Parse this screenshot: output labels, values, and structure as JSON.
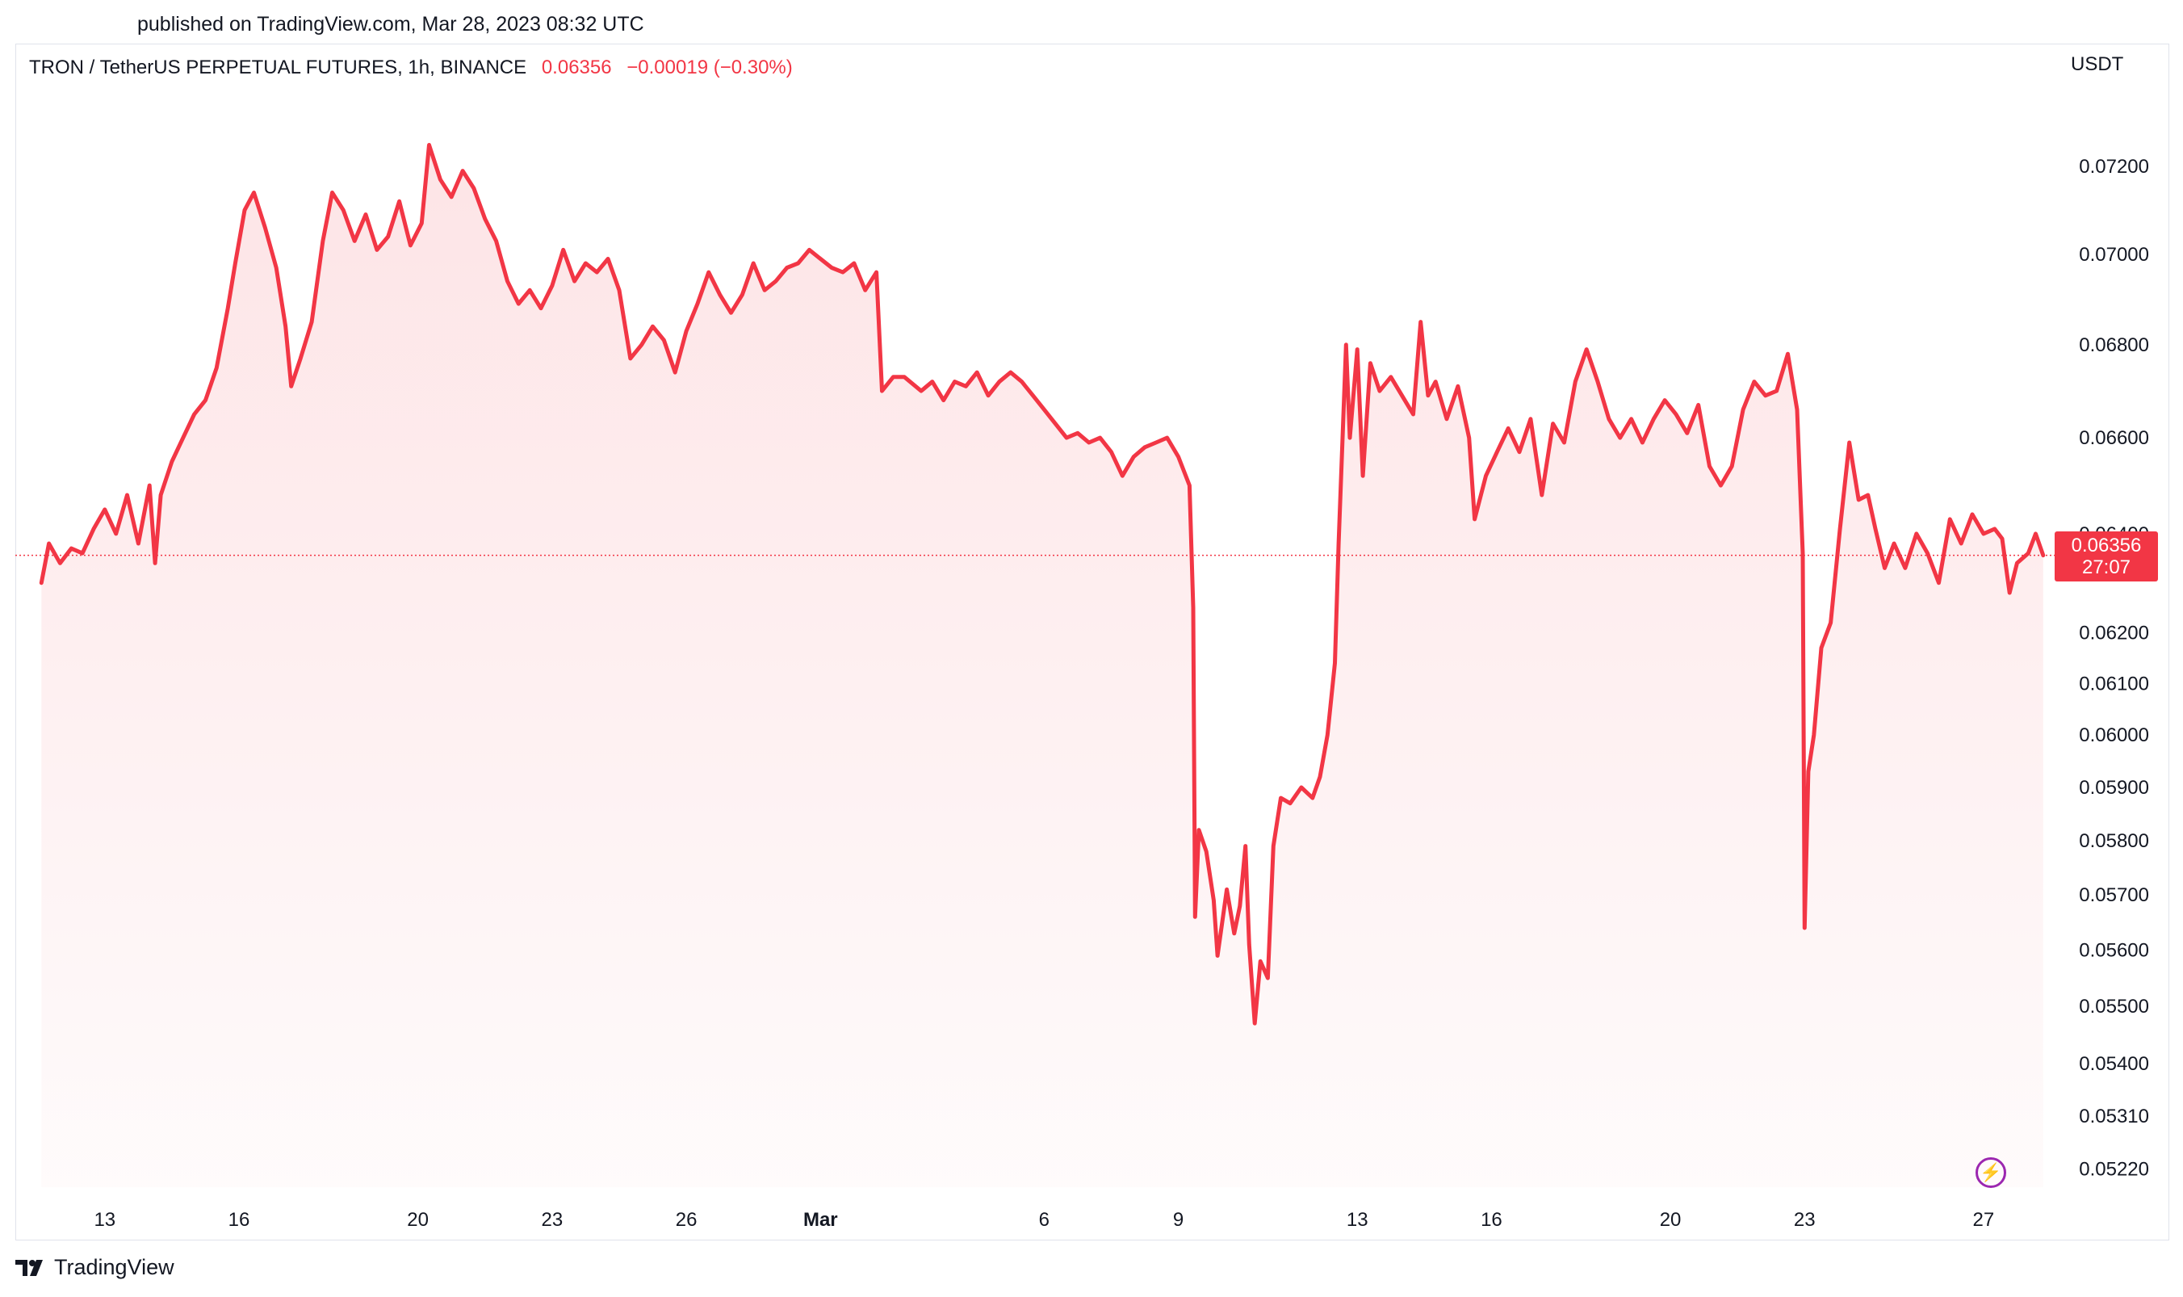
{
  "header": {
    "published": "published on TradingView.com, Mar 28, 2023 08:32 UTC"
  },
  "legend": {
    "symbol": "TRON / TetherUS PERPETUAL FUTURES, 1h, BINANCE",
    "last_price": "0.06356",
    "change": "−0.00019 (−0.30%)"
  },
  "price_scale": {
    "currency": "USDT",
    "tag_price": "0.06356",
    "tag_countdown": "27:07"
  },
  "brand": {
    "name": "TradingView"
  },
  "colors": {
    "line": "#f23645",
    "fill_top": "#fde4e6",
    "tag_bg": "#f23645",
    "bolt": "#9c27b0"
  },
  "chart_data": {
    "type": "area",
    "title": "TRON / TetherUS PERPETUAL FUTURES, 1h, BINANCE",
    "ylabel": "USDT",
    "xlabel": "",
    "y_scale": "log",
    "ylim": [
      0.0519,
      0.0742
    ],
    "xlim": [
      "2023-02-11T00:00",
      "2023-03-28T12:00"
    ],
    "y_ticks": [
      "0.07200",
      "0.07000",
      "0.06800",
      "0.06600",
      "0.06400",
      "0.06200",
      "0.06100",
      "0.06000",
      "0.05900",
      "0.05800",
      "0.05700",
      "0.05600",
      "0.05500",
      "0.05400",
      "0.05310",
      "0.05220"
    ],
    "x_ticks": [
      {
        "label": "13",
        "t": "2023-02-13T00:00"
      },
      {
        "label": "16",
        "t": "2023-02-16T00:00"
      },
      {
        "label": "20",
        "t": "2023-02-20T00:00"
      },
      {
        "label": "23",
        "t": "2023-02-23T00:00"
      },
      {
        "label": "26",
        "t": "2023-02-26T00:00"
      },
      {
        "label": "Mar",
        "t": "2023-03-01T00:00",
        "bold": true
      },
      {
        "label": "6",
        "t": "2023-03-06T00:00"
      },
      {
        "label": "9",
        "t": "2023-03-09T00:00"
      },
      {
        "label": "13",
        "t": "2023-03-13T00:00"
      },
      {
        "label": "16",
        "t": "2023-03-16T00:00"
      },
      {
        "label": "20",
        "t": "2023-03-20T00:00"
      },
      {
        "label": "23",
        "t": "2023-03-23T00:00"
      },
      {
        "label": "27",
        "t": "2023-03-27T00:00"
      }
    ],
    "current_price_line": 0.06356,
    "series": [
      {
        "points": [
          [
            "2023-02-11T14:00",
            0.063
          ],
          [
            "2023-02-11T18:00",
            0.0638
          ],
          [
            "2023-02-12T00:00",
            0.0634
          ],
          [
            "2023-02-12T06:00",
            0.0637
          ],
          [
            "2023-02-12T12:00",
            0.0636
          ],
          [
            "2023-02-12T18:00",
            0.0641
          ],
          [
            "2023-02-13T00:00",
            0.0645
          ],
          [
            "2023-02-13T06:00",
            0.064
          ],
          [
            "2023-02-13T12:00",
            0.0648
          ],
          [
            "2023-02-13T18:00",
            0.0638
          ],
          [
            "2023-02-14T00:00",
            0.065
          ],
          [
            "2023-02-14T03:00",
            0.0634
          ],
          [
            "2023-02-14T06:00",
            0.0648
          ],
          [
            "2023-02-14T12:00",
            0.0655
          ],
          [
            "2023-02-14T18:00",
            0.066
          ],
          [
            "2023-02-15T00:00",
            0.0665
          ],
          [
            "2023-02-15T06:00",
            0.0668
          ],
          [
            "2023-02-15T12:00",
            0.0675
          ],
          [
            "2023-02-15T18:00",
            0.0688
          ],
          [
            "2023-02-15T22:00",
            0.0698
          ],
          [
            "2023-02-16T03:00",
            0.071
          ],
          [
            "2023-02-16T08:00",
            0.0714
          ],
          [
            "2023-02-16T14:00",
            0.0706
          ],
          [
            "2023-02-16T20:00",
            0.0697
          ],
          [
            "2023-02-17T01:00",
            0.0684
          ],
          [
            "2023-02-17T04:00",
            0.0671
          ],
          [
            "2023-02-17T09:00",
            0.0677
          ],
          [
            "2023-02-17T15:00",
            0.0685
          ],
          [
            "2023-02-17T21:00",
            0.0703
          ],
          [
            "2023-02-18T02:00",
            0.0714
          ],
          [
            "2023-02-18T08:00",
            0.071
          ],
          [
            "2023-02-18T14:00",
            0.0703
          ],
          [
            "2023-02-18T20:00",
            0.0709
          ],
          [
            "2023-02-19T02:00",
            0.0701
          ],
          [
            "2023-02-19T08:00",
            0.0704
          ],
          [
            "2023-02-19T14:00",
            0.0712
          ],
          [
            "2023-02-19T20:00",
            0.0702
          ],
          [
            "2023-02-20T02:00",
            0.0707
          ],
          [
            "2023-02-20T06:00",
            0.0725
          ],
          [
            "2023-02-20T12:00",
            0.0717
          ],
          [
            "2023-02-20T18:00",
            0.0713
          ],
          [
            "2023-02-21T00:00",
            0.0719
          ],
          [
            "2023-02-21T06:00",
            0.0715
          ],
          [
            "2023-02-21T12:00",
            0.0708
          ],
          [
            "2023-02-21T18:00",
            0.0703
          ],
          [
            "2023-02-22T00:00",
            0.0694
          ],
          [
            "2023-02-22T06:00",
            0.0689
          ],
          [
            "2023-02-22T12:00",
            0.0692
          ],
          [
            "2023-02-22T18:00",
            0.0688
          ],
          [
            "2023-02-23T00:00",
            0.0693
          ],
          [
            "2023-02-23T06:00",
            0.0701
          ],
          [
            "2023-02-23T12:00",
            0.0694
          ],
          [
            "2023-02-23T18:00",
            0.0698
          ],
          [
            "2023-02-24T00:00",
            0.0696
          ],
          [
            "2023-02-24T06:00",
            0.0699
          ],
          [
            "2023-02-24T12:00",
            0.0692
          ],
          [
            "2023-02-24T18:00",
            0.0677
          ],
          [
            "2023-02-25T00:00",
            0.068
          ],
          [
            "2023-02-25T06:00",
            0.0684
          ],
          [
            "2023-02-25T12:00",
            0.0681
          ],
          [
            "2023-02-25T18:00",
            0.0674
          ],
          [
            "2023-02-26T00:00",
            0.0683
          ],
          [
            "2023-02-26T06:00",
            0.0689
          ],
          [
            "2023-02-26T12:00",
            0.0696
          ],
          [
            "2023-02-26T18:00",
            0.0691
          ],
          [
            "2023-02-27T00:00",
            0.0687
          ],
          [
            "2023-02-27T06:00",
            0.0691
          ],
          [
            "2023-02-27T12:00",
            0.0698
          ],
          [
            "2023-02-27T18:00",
            0.0692
          ],
          [
            "2023-02-28T00:00",
            0.0694
          ],
          [
            "2023-02-28T06:00",
            0.0697
          ],
          [
            "2023-02-28T12:00",
            0.0698
          ],
          [
            "2023-02-28T18:00",
            0.0701
          ],
          [
            "2023-03-01T00:00",
            0.0699
          ],
          [
            "2023-03-01T06:00",
            0.0697
          ],
          [
            "2023-03-01T12:00",
            0.0696
          ],
          [
            "2023-03-01T18:00",
            0.0698
          ],
          [
            "2023-03-02T00:00",
            0.0692
          ],
          [
            "2023-03-02T06:00",
            0.0696
          ],
          [
            "2023-03-02T09:00",
            0.067
          ],
          [
            "2023-03-02T15:00",
            0.0673
          ],
          [
            "2023-03-02T21:00",
            0.0673
          ],
          [
            "2023-03-03T06:00",
            0.067
          ],
          [
            "2023-03-03T12:00",
            0.0672
          ],
          [
            "2023-03-03T18:00",
            0.0668
          ],
          [
            "2023-03-04T00:00",
            0.0672
          ],
          [
            "2023-03-04T06:00",
            0.0671
          ],
          [
            "2023-03-04T12:00",
            0.0674
          ],
          [
            "2023-03-04T18:00",
            0.0669
          ],
          [
            "2023-03-05T00:00",
            0.0672
          ],
          [
            "2023-03-05T06:00",
            0.0674
          ],
          [
            "2023-03-05T12:00",
            0.0672
          ],
          [
            "2023-03-05T18:00",
            0.0669
          ],
          [
            "2023-03-06T00:00",
            0.0666
          ],
          [
            "2023-03-06T06:00",
            0.0663
          ],
          [
            "2023-03-06T12:00",
            0.066
          ],
          [
            "2023-03-06T18:00",
            0.0661
          ],
          [
            "2023-03-07T00:00",
            0.0659
          ],
          [
            "2023-03-07T06:00",
            0.066
          ],
          [
            "2023-03-07T12:00",
            0.0657
          ],
          [
            "2023-03-07T18:00",
            0.0652
          ],
          [
            "2023-03-08T00:00",
            0.0656
          ],
          [
            "2023-03-08T06:00",
            0.0658
          ],
          [
            "2023-03-08T12:00",
            0.0659
          ],
          [
            "2023-03-08T18:00",
            0.066
          ],
          [
            "2023-03-09T00:00",
            0.0656
          ],
          [
            "2023-03-09T06:00",
            0.065
          ],
          [
            "2023-03-09T08:00",
            0.0625
          ],
          [
            "2023-03-09T09:00",
            0.0566
          ],
          [
            "2023-03-09T11:00",
            0.0582
          ],
          [
            "2023-03-09T15:00",
            0.0578
          ],
          [
            "2023-03-09T19:00",
            0.0569
          ],
          [
            "2023-03-09T21:00",
            0.0559
          ],
          [
            "2023-03-10T02:00",
            0.0571
          ],
          [
            "2023-03-10T06:00",
            0.0563
          ],
          [
            "2023-03-10T09:00",
            0.0568
          ],
          [
            "2023-03-10T12:00",
            0.0579
          ],
          [
            "2023-03-10T14:00",
            0.0561
          ],
          [
            "2023-03-10T17:00",
            0.0547
          ],
          [
            "2023-03-10T20:00",
            0.0558
          ],
          [
            "2023-03-11T00:00",
            0.0555
          ],
          [
            "2023-03-11T03:00",
            0.0579
          ],
          [
            "2023-03-11T07:00",
            0.0588
          ],
          [
            "2023-03-11T12:00",
            0.0587
          ],
          [
            "2023-03-11T18:00",
            0.059
          ],
          [
            "2023-03-12T00:00",
            0.0588
          ],
          [
            "2023-03-12T04:00",
            0.0592
          ],
          [
            "2023-03-12T08:00",
            0.06
          ],
          [
            "2023-03-12T12:00",
            0.0614
          ],
          [
            "2023-03-12T14:00",
            0.0638
          ],
          [
            "2023-03-12T18:00",
            0.068
          ],
          [
            "2023-03-12T20:00",
            0.066
          ],
          [
            "2023-03-13T00:00",
            0.0679
          ],
          [
            "2023-03-13T03:00",
            0.0652
          ],
          [
            "2023-03-13T07:00",
            0.0676
          ],
          [
            "2023-03-13T12:00",
            0.067
          ],
          [
            "2023-03-13T18:00",
            0.0673
          ],
          [
            "2023-03-14T00:00",
            0.0669
          ],
          [
            "2023-03-14T06:00",
            0.0665
          ],
          [
            "2023-03-14T10:00",
            0.0685
          ],
          [
            "2023-03-14T14:00",
            0.0669
          ],
          [
            "2023-03-14T18:00",
            0.0672
          ],
          [
            "2023-03-15T00:00",
            0.0664
          ],
          [
            "2023-03-15T06:00",
            0.0671
          ],
          [
            "2023-03-15T12:00",
            0.066
          ],
          [
            "2023-03-15T15:00",
            0.0643
          ],
          [
            "2023-03-15T21:00",
            0.0652
          ],
          [
            "2023-03-16T03:00",
            0.0657
          ],
          [
            "2023-03-16T09:00",
            0.0662
          ],
          [
            "2023-03-16T15:00",
            0.0657
          ],
          [
            "2023-03-16T21:00",
            0.0664
          ],
          [
            "2023-03-17T03:00",
            0.0648
          ],
          [
            "2023-03-17T09:00",
            0.0663
          ],
          [
            "2023-03-17T15:00",
            0.0659
          ],
          [
            "2023-03-17T21:00",
            0.0672
          ],
          [
            "2023-03-18T03:00",
            0.0679
          ],
          [
            "2023-03-18T09:00",
            0.0672
          ],
          [
            "2023-03-18T15:00",
            0.0664
          ],
          [
            "2023-03-18T21:00",
            0.066
          ],
          [
            "2023-03-19T03:00",
            0.0664
          ],
          [
            "2023-03-19T09:00",
            0.0659
          ],
          [
            "2023-03-19T15:00",
            0.0664
          ],
          [
            "2023-03-19T21:00",
            0.0668
          ],
          [
            "2023-03-20T03:00",
            0.0665
          ],
          [
            "2023-03-20T09:00",
            0.0661
          ],
          [
            "2023-03-20T15:00",
            0.0667
          ],
          [
            "2023-03-20T21:00",
            0.0654
          ],
          [
            "2023-03-21T03:00",
            0.065
          ],
          [
            "2023-03-21T09:00",
            0.0654
          ],
          [
            "2023-03-21T15:00",
            0.0666
          ],
          [
            "2023-03-21T21:00",
            0.0672
          ],
          [
            "2023-03-22T03:00",
            0.0669
          ],
          [
            "2023-03-22T09:00",
            0.067
          ],
          [
            "2023-03-22T15:00",
            0.0678
          ],
          [
            "2023-03-22T20:00",
            0.0666
          ],
          [
            "2023-03-22T23:00",
            0.0636
          ],
          [
            "2023-03-23T00:00",
            0.0564
          ],
          [
            "2023-03-23T02:00",
            0.0593
          ],
          [
            "2023-03-23T05:00",
            0.06
          ],
          [
            "2023-03-23T09:00",
            0.0617
          ],
          [
            "2023-03-23T14:00",
            0.0622
          ],
          [
            "2023-03-23T19:00",
            0.0641
          ],
          [
            "2023-03-24T00:00",
            0.0659
          ],
          [
            "2023-03-24T05:00",
            0.0647
          ],
          [
            "2023-03-24T10:00",
            0.0648
          ],
          [
            "2023-03-24T14:00",
            0.0641
          ],
          [
            "2023-03-24T19:00",
            0.0633
          ],
          [
            "2023-03-25T00:00",
            0.0638
          ],
          [
            "2023-03-25T06:00",
            0.0633
          ],
          [
            "2023-03-25T12:00",
            0.064
          ],
          [
            "2023-03-25T18:00",
            0.0636
          ],
          [
            "2023-03-26T00:00",
            0.063
          ],
          [
            "2023-03-26T06:00",
            0.0643
          ],
          [
            "2023-03-26T12:00",
            0.0638
          ],
          [
            "2023-03-26T18:00",
            0.0644
          ],
          [
            "2023-03-27T00:00",
            0.064
          ],
          [
            "2023-03-27T06:00",
            0.0641
          ],
          [
            "2023-03-27T10:00",
            0.0639
          ],
          [
            "2023-03-27T14:00",
            0.0628
          ],
          [
            "2023-03-27T18:00",
            0.0634
          ],
          [
            "2023-03-28T00:00",
            0.0636
          ],
          [
            "2023-03-28T04:00",
            0.064
          ],
          [
            "2023-03-28T08:00",
            0.06356
          ]
        ]
      }
    ]
  }
}
